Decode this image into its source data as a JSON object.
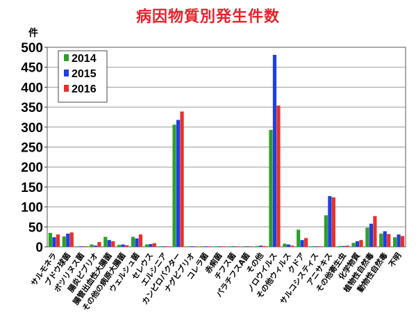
{
  "chart_data": {
    "type": "bar",
    "title": "病因物質別発生件数",
    "ylabel": "件",
    "ylim": [
      0,
      500
    ],
    "yticks": [
      0,
      50,
      100,
      150,
      200,
      250,
      300,
      350,
      400,
      450,
      500
    ],
    "grid": true,
    "legend_position": "top-left",
    "categories": [
      "サルモネラ",
      "ブドウ球菌",
      "ボツリヌス菌",
      "腸炎ビブリオ",
      "腸管出血性大腸菌",
      "その他の病原大腸菌",
      "ウェルシュ菌",
      "セレウス",
      "エルシニア",
      "カンピロバクター",
      "ナグビブリオ",
      "コレラ菌",
      "赤痢菌",
      "チフス菌",
      "パラチフスA菌",
      "その他",
      "ノロウイルス",
      "その他ウィルス",
      "クドア",
      "サルコシスティス",
      "アニサキス",
      "その他寄生虫",
      "化学物質",
      "植物性自然毒",
      "動物性自然毒",
      "不明"
    ],
    "series": [
      {
        "name": "2014",
        "color": "#2ca02c",
        "values": [
          35,
          26,
          0,
          6,
          25,
          5,
          25,
          6,
          0,
          306,
          0,
          0,
          0,
          0,
          0,
          2,
          293,
          8,
          43,
          0,
          79,
          2,
          10,
          48,
          33,
          24
        ]
      },
      {
        "name": "2015",
        "color": "#1f3fe0",
        "values": [
          24,
          33,
          0,
          3,
          17,
          6,
          21,
          7,
          1,
          318,
          0,
          0,
          0,
          0,
          0,
          3,
          481,
          6,
          17,
          0,
          127,
          2,
          14,
          58,
          39,
          31
        ]
      },
      {
        "name": "2016",
        "color": "#e8302a",
        "values": [
          31,
          36,
          0,
          12,
          14,
          4,
          31,
          9,
          1,
          339,
          0,
          0,
          0,
          0,
          0,
          2,
          354,
          3,
          22,
          0,
          124,
          3,
          17,
          77,
          32,
          27
        ]
      }
    ]
  }
}
